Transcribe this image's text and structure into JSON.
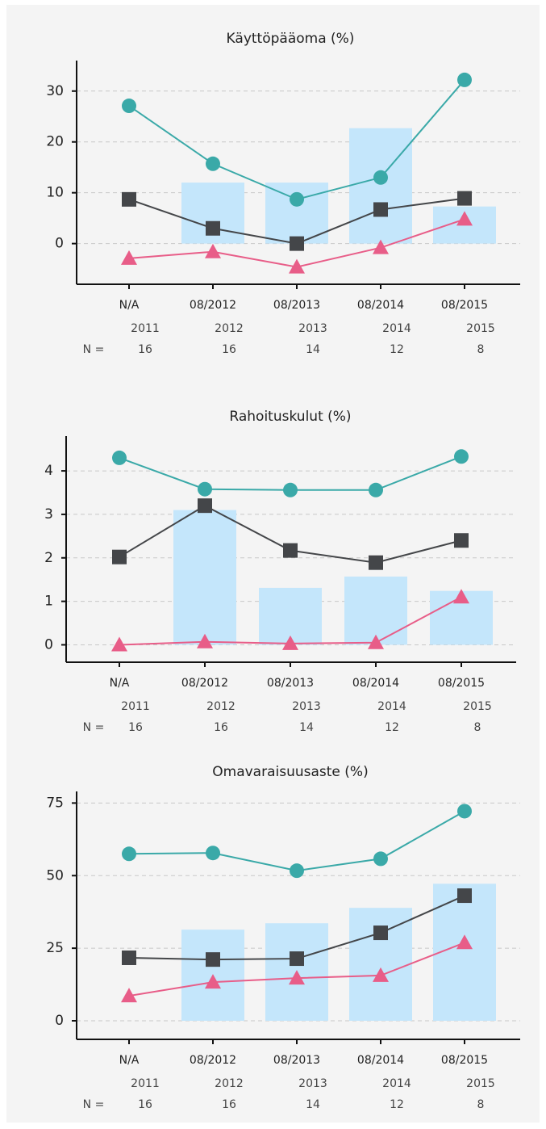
{
  "chart_data": [
    {
      "type": "combo",
      "title": "Käyttöpääoma (%)",
      "categories": [
        "N/A",
        "08/2012",
        "08/2013",
        "08/2014",
        "08/2015"
      ],
      "years": [
        "2011",
        "2012",
        "2013",
        "2014",
        "2015"
      ],
      "n_label": "N =",
      "n_values": [
        "16",
        "16",
        "14",
        "12",
        "8"
      ],
      "ylim": [
        -8,
        36
      ],
      "yticks": [
        0,
        10,
        20,
        30
      ],
      "grid": true,
      "series": [
        {
          "type": "bar",
          "color": "#c4e6fb",
          "values": [
            null,
            12,
            12,
            22.7,
            7.3
          ]
        },
        {
          "type": "line",
          "marker": "circle",
          "color": "#3aa9a8",
          "values": [
            27.1,
            15.7,
            8.7,
            13,
            32.2
          ]
        },
        {
          "type": "line",
          "marker": "square",
          "color": "#444649",
          "values": [
            8.7,
            3,
            0,
            6.7,
            8.9
          ]
        },
        {
          "type": "line",
          "marker": "triangle",
          "color": "#e85d88",
          "values": [
            -2.9,
            -1.6,
            -4.6,
            -0.8,
            4.8
          ]
        }
      ]
    },
    {
      "type": "combo",
      "title": "Rahoituskulut (%)",
      "categories": [
        "N/A",
        "08/2012",
        "08/2013",
        "08/2014",
        "08/2015"
      ],
      "years": [
        "2011",
        "2012",
        "2013",
        "2014",
        "2015"
      ],
      "n_label": "N =",
      "n_values": [
        "16",
        "16",
        "14",
        "12",
        "8"
      ],
      "ylim": [
        -0.4,
        4.8
      ],
      "yticks": [
        0,
        1,
        2,
        3,
        4
      ],
      "grid": true,
      "series": [
        {
          "type": "bar",
          "color": "#c4e6fb",
          "values": [
            null,
            3.1,
            1.31,
            1.57,
            1.24
          ]
        },
        {
          "type": "line",
          "marker": "circle",
          "color": "#3aa9a8",
          "values": [
            4.3,
            3.58,
            3.56,
            3.56,
            4.33
          ]
        },
        {
          "type": "line",
          "marker": "square",
          "color": "#444649",
          "values": [
            2.02,
            3.2,
            2.17,
            1.89,
            2.4
          ]
        },
        {
          "type": "line",
          "marker": "triangle",
          "color": "#e85d88",
          "values": [
            0,
            0.07,
            0.03,
            0.05,
            1.1
          ]
        }
      ]
    },
    {
      "type": "combo",
      "title": "Omavaraisuusaste (%)",
      "categories": [
        "N/A",
        "08/2012",
        "08/2013",
        "08/2014",
        "08/2015"
      ],
      "years": [
        "2011",
        "2012",
        "2013",
        "2014",
        "2015"
      ],
      "n_label": "N =",
      "n_values": [
        "16",
        "16",
        "14",
        "12",
        "8"
      ],
      "ylim": [
        -6.4,
        79
      ],
      "yticks": [
        0,
        25,
        50,
        75
      ],
      "grid": true,
      "series": [
        {
          "type": "bar",
          "color": "#c4e6fb",
          "values": [
            null,
            31.4,
            33.6,
            38.9,
            47.2
          ]
        },
        {
          "type": "line",
          "marker": "circle",
          "color": "#3aa9a8",
          "values": [
            57.5,
            57.8,
            51.7,
            55.8,
            72.2
          ]
        },
        {
          "type": "line",
          "marker": "square",
          "color": "#444649",
          "values": [
            21.7,
            21.1,
            21.4,
            30.3,
            43.1
          ]
        },
        {
          "type": "line",
          "marker": "triangle",
          "color": "#e85d88",
          "values": [
            8.6,
            13.3,
            14.7,
            15.6,
            26.9
          ]
        }
      ]
    }
  ]
}
